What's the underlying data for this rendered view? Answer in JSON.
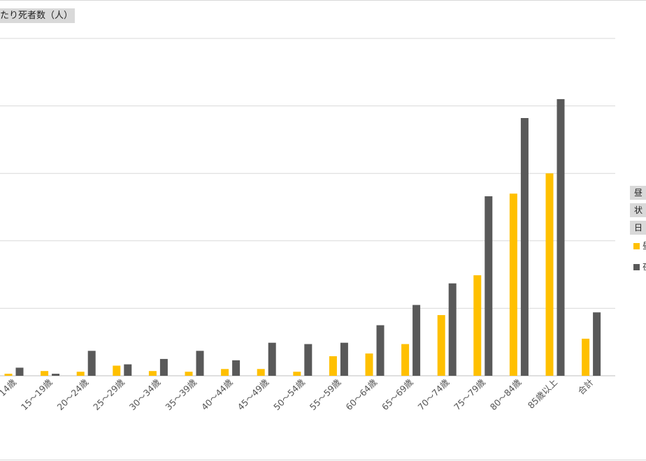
{
  "chart_data": {
    "type": "bar",
    "ylabel": "たり死者数（人）",
    "grid": true,
    "ylim": [
      0,
      500
    ],
    "yticks": [
      0,
      100,
      200,
      300,
      400,
      500
    ],
    "categories": [
      "14歳",
      "15～19歳",
      "20～24歳",
      "25～29歳",
      "30～34歳",
      "35～39歳",
      "40～44歳",
      "45～49歳",
      "50～54歳",
      "55～59歳",
      "60～64歳",
      "65～69歳",
      "70～74歳",
      "75～79歳",
      "80～84歳",
      "85歳以上",
      "合計"
    ],
    "series": [
      {
        "color": "#ffc000",
        "values": [
          3,
          7,
          6,
          15,
          7,
          6,
          10,
          10,
          6,
          29,
          33,
          47,
          90,
          149,
          270,
          300,
          55
        ]
      },
      {
        "color": "#595959",
        "values": [
          12,
          3,
          37,
          17,
          25,
          37,
          23,
          49,
          47,
          49,
          75,
          105,
          137,
          266,
          382,
          410,
          94
        ]
      }
    ],
    "legend": {
      "placement": "right",
      "tags": [
        "昼",
        "状",
        "日"
      ],
      "items": [
        "昼",
        "夜"
      ]
    }
  }
}
